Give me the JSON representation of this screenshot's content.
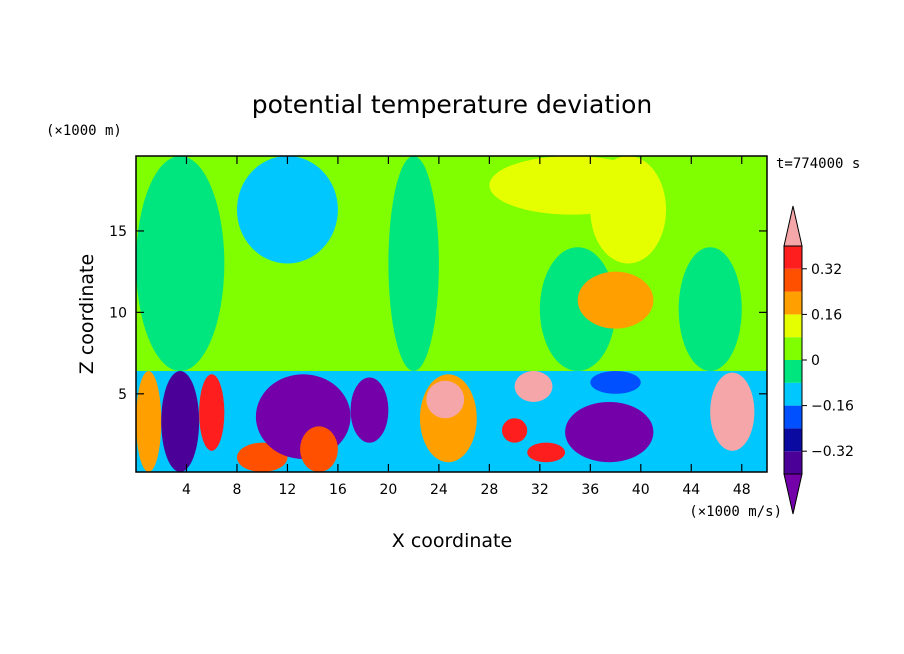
{
  "chart_data": {
    "type": "heatmap",
    "title": "potential temperature deviation",
    "time_label": "t=774000 s",
    "xlabel": "X coordinate",
    "ylabel": "Z coordinate",
    "x_unit": "(×1000 m/s)",
    "y_unit": "(×1000 m)",
    "xlim": [
      0,
      50
    ],
    "ylim": [
      0.2,
      19.6
    ],
    "x_ticks": [
      4,
      8,
      12,
      16,
      20,
      24,
      28,
      32,
      36,
      40,
      44,
      48
    ],
    "y_ticks": [
      5,
      10,
      15
    ],
    "colorbar": {
      "levels": [
        -0.48,
        -0.4,
        -0.32,
        -0.24,
        -0.16,
        -0.08,
        0,
        0.08,
        0.16,
        0.24,
        0.32,
        0.4
      ],
      "tick_values": [
        0.32,
        0.16,
        0,
        -0.16,
        -0.32
      ],
      "tick_labels": [
        "0.32",
        "0.16",
        "0",
        "−0.16",
        "−0.32"
      ],
      "colors": [
        "#7300a8",
        "#4b0098",
        "#0a0aa0",
        "#0050ff",
        "#00c8ff",
        "#00e67f",
        "#80ff00",
        "#e6ff00",
        "#ffa000",
        "#ff5000",
        "#ff1e1e",
        "#f5a6a8"
      ]
    },
    "regions": [
      {
        "x": [
          0,
          50
        ],
        "z": [
          6.4,
          19.6
        ],
        "v": 0.03
      },
      {
        "x": [
          0,
          7
        ],
        "z": [
          6.4,
          19.6
        ],
        "v": -0.05
      },
      {
        "x": [
          8,
          16
        ],
        "z": [
          13.0,
          19.6
        ],
        "v": -0.12
      },
      {
        "x": [
          20,
          24
        ],
        "z": [
          6.4,
          19.6
        ],
        "v": -0.06
      },
      {
        "x": [
          32,
          38
        ],
        "z": [
          6.4,
          14.0
        ],
        "v": -0.06
      },
      {
        "x": [
          43,
          48
        ],
        "z": [
          6.4,
          14.0
        ],
        "v": -0.06
      },
      {
        "x": [
          28,
          41
        ],
        "z": [
          16.0,
          19.6
        ],
        "v": 0.09
      },
      {
        "x": [
          36,
          42
        ],
        "z": [
          13.0,
          19.6
        ],
        "v": 0.15
      },
      {
        "x": [
          35,
          41
        ],
        "z": [
          9.0,
          12.5
        ],
        "v": 0.16
      },
      {
        "x": [
          0,
          50
        ],
        "z": [
          0.2,
          6.4
        ],
        "v": -0.11
      },
      {
        "x": [
          0,
          2
        ],
        "z": [
          0.2,
          6.4
        ],
        "v": 0.22
      },
      {
        "x": [
          2,
          5
        ],
        "z": [
          0.2,
          6.4
        ],
        "v": -0.4
      },
      {
        "x": [
          5,
          7
        ],
        "z": [
          1.5,
          6.2
        ],
        "v": 0.32
      },
      {
        "x": [
          8,
          12
        ],
        "z": [
          0.2,
          2.0
        ],
        "v": 0.25
      },
      {
        "x": [
          9.5,
          17
        ],
        "z": [
          1.0,
          6.2
        ],
        "v": -0.45
      },
      {
        "x": [
          13,
          16
        ],
        "z": [
          0.2,
          3.0
        ],
        "v": 0.3
      },
      {
        "x": [
          17,
          20
        ],
        "z": [
          2.0,
          6.0
        ],
        "v": -0.45
      },
      {
        "x": [
          22.5,
          27
        ],
        "z": [
          0.8,
          6.2
        ],
        "v": 0.22
      },
      {
        "x": [
          23,
          26
        ],
        "z": [
          3.5,
          5.8
        ],
        "v": 0.42
      },
      {
        "x": [
          29,
          31
        ],
        "z": [
          2.0,
          3.5
        ],
        "v": 0.36
      },
      {
        "x": [
          31,
          34
        ],
        "z": [
          0.8,
          2.0
        ],
        "v": 0.33
      },
      {
        "x": [
          34,
          41
        ],
        "z": [
          0.8,
          4.5
        ],
        "v": -0.45
      },
      {
        "x": [
          30,
          33
        ],
        "z": [
          4.5,
          6.4
        ],
        "v": 0.42
      },
      {
        "x": [
          36,
          40
        ],
        "z": [
          5.0,
          6.4
        ],
        "v": -0.22
      },
      {
        "x": [
          45.5,
          49
        ],
        "z": [
          1.5,
          6.3
        ],
        "v": 0.4
      }
    ]
  }
}
